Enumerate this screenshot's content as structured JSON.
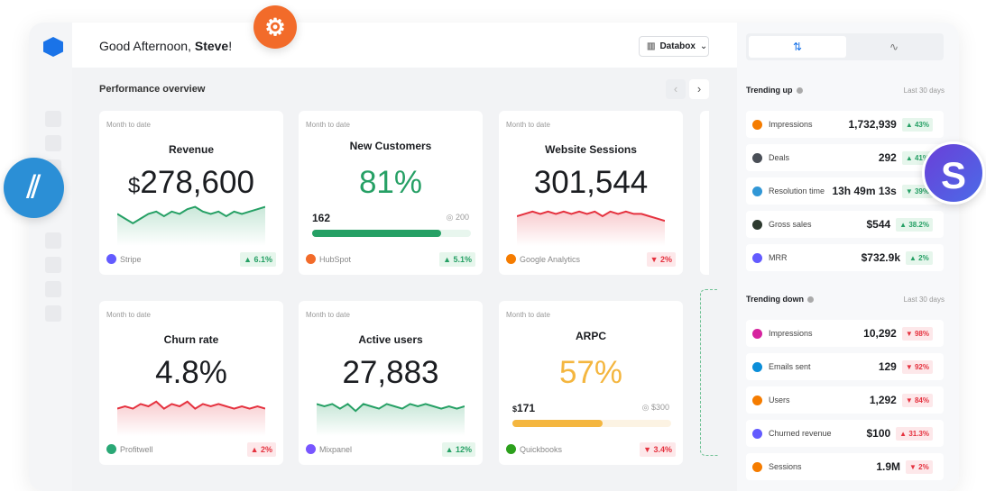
{
  "header": {
    "greeting": "Good Afternoon, ",
    "user": "Steve",
    "greeting_end": "!",
    "workspace": "Databox"
  },
  "main": {
    "title": "Performance overview"
  },
  "cards": [
    {
      "period": "Month to date",
      "title": "Revenue",
      "prefix": "$",
      "value": "278,600",
      "source": "Stripe",
      "change": "▲ 6.1%",
      "dir": "up",
      "trend": [
        6,
        4,
        2,
        4,
        6,
        7,
        5,
        7,
        6,
        8,
        9,
        7,
        6,
        7,
        5,
        7,
        6,
        7,
        8,
        9
      ]
    },
    {
      "period": "Month to date",
      "title": "New Customers",
      "value": "81%",
      "current": "162",
      "goal": "200",
      "progress": 0.81,
      "source": "HubSpot",
      "change": "▲ 5.1%",
      "dir": "up"
    },
    {
      "period": "Month to date",
      "title": "Website Sessions",
      "value": "301,544",
      "source": "Google Analytics",
      "change": "▼ 2%",
      "dir": "down",
      "trend": [
        5,
        6,
        7,
        6,
        7,
        6,
        7,
        6,
        7,
        6,
        7,
        5,
        7,
        6,
        7,
        6,
        6,
        5,
        4,
        3
      ]
    },
    {
      "period": "Month to date",
      "title": "Churn rate",
      "value": "4.8%",
      "source": "Profitwell",
      "change": "▲ 2%",
      "dir": "down",
      "trend": [
        4,
        5,
        4,
        6,
        5,
        7,
        4,
        6,
        5,
        7,
        4,
        6,
        5,
        6,
        5,
        4,
        5,
        4,
        5,
        4
      ]
    },
    {
      "period": "Month to date",
      "title": "Active users",
      "value": "27,883",
      "source": "Mixpanel",
      "change": "▲ 12%",
      "dir": "up",
      "trend": [
        6,
        5,
        6,
        4,
        6,
        3,
        6,
        5,
        4,
        6,
        5,
        4,
        6,
        5,
        6,
        5,
        4,
        5,
        4,
        5
      ]
    },
    {
      "period": "Month to date",
      "title": "ARPC",
      "prefix": "$",
      "value": "57%",
      "current": "171",
      "goal": "$300",
      "progress": 0.57,
      "source": "Quickbooks",
      "change": "▼ 3.4%",
      "dir": "down"
    }
  ],
  "right": {
    "trending_up": {
      "title": "Trending up",
      "period": "Last 30 days",
      "items": [
        {
          "label": "Impressions",
          "value": "1,732,939",
          "change": "▲ 43%",
          "icon": "google-analytics",
          "color": "#f57c00"
        },
        {
          "label": "Deals",
          "value": "292",
          "change": "▲ 41%",
          "icon": "hubspot",
          "color": "#4a4f57"
        },
        {
          "label": "Resolution time",
          "value": "13h 49m 13s",
          "change": "▼ 39%",
          "icon": "helpscout",
          "color": "#3197d6"
        },
        {
          "label": "Gross sales",
          "value": "$544",
          "change": "▲ 38.2%",
          "icon": "shopify",
          "color": "#2d3a2f"
        },
        {
          "label": "MRR",
          "value": "$732.9k",
          "change": "▲ 2%",
          "icon": "stripe",
          "color": "#635bff"
        }
      ]
    },
    "trending_down": {
      "title": "Trending down",
      "period": "Last 30 days",
      "items": [
        {
          "label": "Impressions",
          "value": "10,292",
          "change": "▼ 98%",
          "icon": "instagram",
          "color": "#d6249f"
        },
        {
          "label": "Emails sent",
          "value": "129",
          "change": "▼ 92%",
          "icon": "sendinblue",
          "color": "#0b8ed9"
        },
        {
          "label": "Users",
          "value": "1,292",
          "change": "▼ 84%",
          "icon": "google-analytics",
          "color": "#f57c00"
        },
        {
          "label": "Churned revenue",
          "value": "$100",
          "change": "▲ 31.3%",
          "icon": "stripe",
          "color": "#635bff"
        },
        {
          "label": "Sessions",
          "value": "1.9M",
          "change": "▼ 2%",
          "icon": "google-analytics",
          "color": "#f57c00"
        }
      ]
    }
  },
  "colors": {
    "green": "#26a065",
    "red": "#e5323f",
    "yellow": "#f4b63f",
    "accent": "#1a73e8"
  }
}
